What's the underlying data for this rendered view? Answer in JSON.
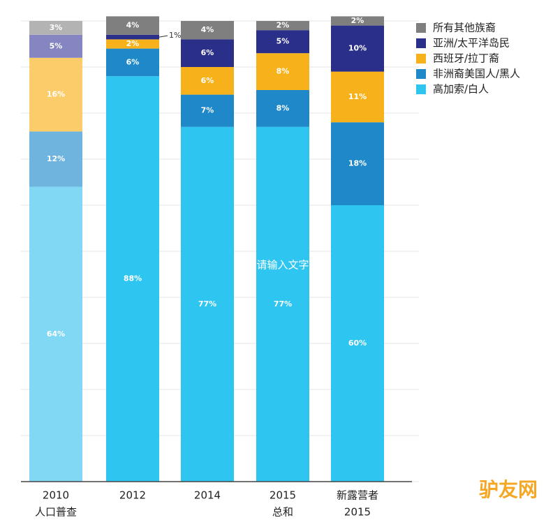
{
  "chart_data": {
    "type": "stacked_bar",
    "categories": [
      "2010",
      "2012",
      "2014",
      "2015",
      "新露营者"
    ],
    "category_sublabels": [
      "人口普查",
      null,
      null,
      "总和",
      "2015"
    ],
    "ylim": [
      0,
      100
    ],
    "yticks": [
      0,
      10,
      20,
      30,
      40,
      50,
      60,
      70,
      80,
      90,
      100
    ],
    "grid": true,
    "show_tick_labels": false,
    "legend_position": "top-right",
    "series": [
      {
        "name": "高加索/白人",
        "color": "#2ec5f0",
        "colors": [
          "#80d8f5",
          "#2ec5f0",
          "#2ec5f0",
          "#2ec5f0",
          "#2ec5f0"
        ],
        "values": [
          64,
          88,
          77,
          77,
          60
        ],
        "value_labels": [
          "64%",
          "88%",
          "77%",
          "77%",
          "60%"
        ]
      },
      {
        "name": "非洲裔美国人/黑人",
        "color": "#1e88c8",
        "colors": [
          "#6fb3df",
          "#1e88c8",
          "#1e88c8",
          "#1e88c8",
          "#1e88c8"
        ],
        "values": [
          12,
          6,
          7,
          8,
          18
        ],
        "value_labels": [
          "12%",
          "6%",
          "7%",
          "8%",
          "18%"
        ]
      },
      {
        "name": "西班牙/拉丁裔",
        "color": "#f7b21b",
        "colors": [
          "#fbcd6a",
          "#f7b21b",
          "#f7b21b",
          "#f7b21b",
          "#f7b21b"
        ],
        "values": [
          16,
          2,
          6,
          8,
          11
        ],
        "value_labels": [
          "16%",
          "2%",
          "6%",
          "8%",
          "11%"
        ]
      },
      {
        "name": "亚洲/太平洋岛民",
        "color": "#2a2f8a",
        "colors": [
          "#8585c2",
          "#2a2f8a",
          "#2a2f8a",
          "#2a2f8a",
          "#2a2f8a"
        ],
        "values": [
          5,
          1,
          6,
          5,
          10
        ],
        "value_labels": [
          "5%",
          "1%",
          "6%",
          "5%",
          "10%"
        ]
      },
      {
        "name": "所有其他族裔",
        "color": "#7f7f7f",
        "colors": [
          "#b3b3b3",
          "#7f7f7f",
          "#7f7f7f",
          "#7f7f7f",
          "#7f7f7f"
        ],
        "values": [
          3,
          4,
          4,
          2,
          2
        ],
        "value_labels": [
          "3%",
          "4%",
          "4%",
          "2%",
          "2%"
        ]
      }
    ],
    "annotations": [
      "请输入文字"
    ],
    "watermark": "驴友网"
  }
}
